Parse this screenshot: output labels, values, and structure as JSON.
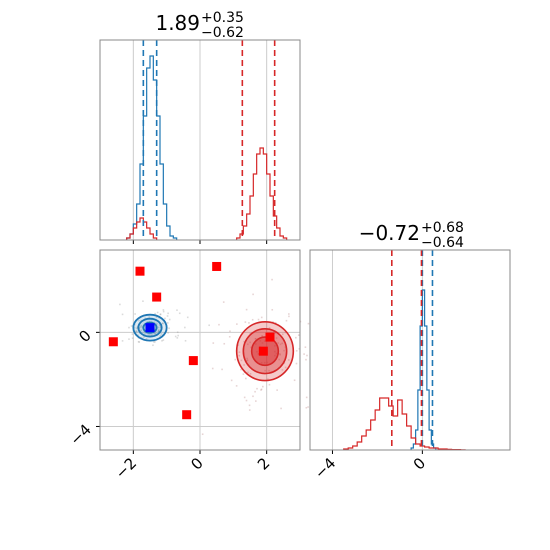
{
  "colors": {
    "blue": "#1f77b4",
    "red": "#d62728",
    "grid": "#cccccc",
    "frame": "#888888"
  },
  "chart_data": [
    {
      "panel": "marginal-x",
      "type": "histogram",
      "title": {
        "value": "1.89",
        "plus": "+0.35",
        "minus": "−0.62"
      },
      "xlim": [
        -3,
        3
      ],
      "grid": true,
      "quantile_lines": {
        "blue": [
          -1.7,
          -1.3
        ],
        "red": [
          1.27,
          2.24
        ]
      },
      "series": [
        {
          "color": "blue",
          "edges_start": -2.2,
          "bin_width": 0.1,
          "counts": [
            0.01,
            0.03,
            0.08,
            0.18,
            0.38,
            0.62,
            0.86,
            0.92,
            0.8,
            0.62,
            0.38,
            0.18,
            0.07,
            0.02,
            0.01
          ]
        },
        {
          "color": "red",
          "edges_start": -2.2,
          "bin_width": 0.1,
          "counts": [
            0.01,
            0.03,
            0.06,
            0.09,
            0.11,
            0.09,
            0.06,
            0.03,
            0.01
          ]
        },
        {
          "color": "red",
          "edges_start": 1.1,
          "bin_width": 0.1,
          "counts": [
            0.01,
            0.03,
            0.07,
            0.13,
            0.22,
            0.33,
            0.43,
            0.46,
            0.43,
            0.33,
            0.22,
            0.12,
            0.06,
            0.02,
            0.01
          ]
        }
      ]
    },
    {
      "panel": "joint",
      "type": "scatter",
      "xlim": [
        -3,
        3
      ],
      "ylim": [
        -5,
        3.5
      ],
      "xticks": [
        -2,
        0,
        2
      ],
      "yticks": [
        0,
        -4
      ],
      "xticklabels": [
        "−2",
        "0",
        "2"
      ],
      "yticklabels": [
        "0",
        "−4"
      ],
      "grid": true,
      "red_markers": [
        [
          -1.8,
          2.6
        ],
        [
          -1.3,
          1.5
        ],
        [
          0.5,
          2.8
        ],
        [
          -2.6,
          -0.4
        ],
        [
          -0.2,
          -1.2
        ],
        [
          -0.4,
          -3.5
        ],
        [
          2.1,
          -0.2
        ],
        [
          1.9,
          -0.8
        ]
      ],
      "blue_marker": [
        -1.5,
        0.2
      ],
      "blue_contours": {
        "center": [
          -1.5,
          0.2
        ],
        "radii": [
          [
            0.5,
            0.55
          ],
          [
            0.35,
            0.38
          ],
          [
            0.2,
            0.22
          ]
        ]
      },
      "red_contours": {
        "center": [
          1.95,
          -0.8
        ],
        "radii": [
          [
            0.85,
            1.25
          ],
          [
            0.65,
            0.95
          ],
          [
            0.4,
            0.6
          ]
        ]
      }
    },
    {
      "panel": "marginal-y",
      "type": "histogram",
      "title": {
        "value": "−0.72",
        "plus": "+0.68",
        "minus": "−0.64"
      },
      "xlim": [
        -5,
        3.9
      ],
      "xticks": [
        -4,
        0
      ],
      "xticklabels": [
        "−4",
        "0"
      ],
      "grid": true,
      "quantile_lines": {
        "blue": [
          0.0,
          0.45
        ],
        "red": [
          -1.36,
          -0.04
        ]
      },
      "series": [
        {
          "color": "blue",
          "edges_start": -0.5,
          "bin_width": 0.1,
          "counts": [
            0.01,
            0.03,
            0.1,
            0.3,
            0.62,
            0.8,
            0.62,
            0.3,
            0.1,
            0.03,
            0.01
          ]
        },
        {
          "color": "red",
          "edges_start": -3.5,
          "bin_width": 0.2,
          "counts": [
            0.005,
            0.01,
            0.02,
            0.04,
            0.07,
            0.1,
            0.15,
            0.2,
            0.26,
            0.26,
            0.22,
            0.17,
            0.25,
            0.18,
            0.12,
            0.06,
            0.03,
            0.02,
            0.015,
            0.01,
            0.01,
            0.005,
            0.005,
            0.003,
            0.002,
            0.002,
            0.001
          ]
        }
      ]
    }
  ]
}
